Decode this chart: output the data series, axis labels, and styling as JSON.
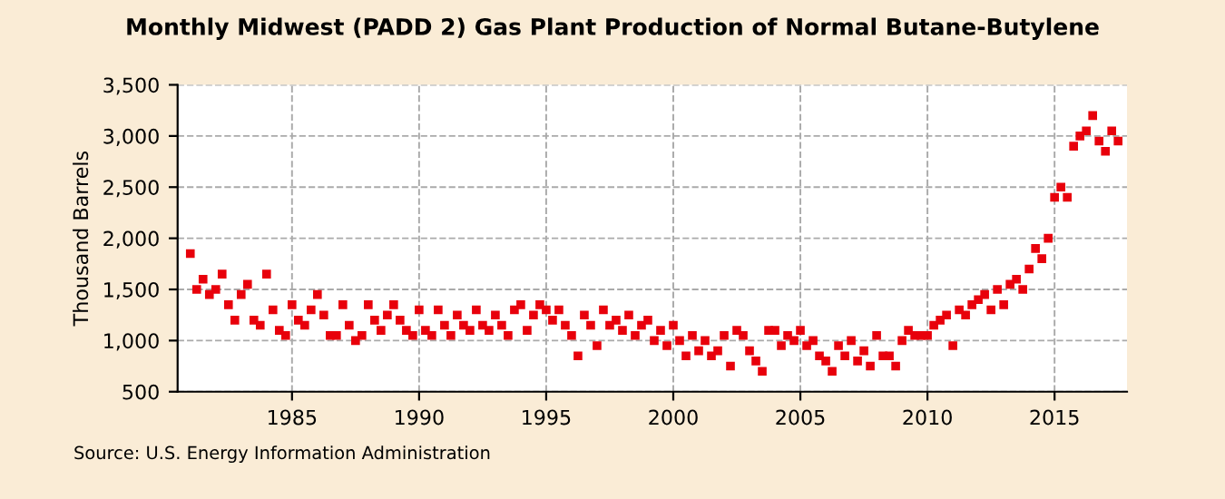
{
  "chart_data": {
    "type": "scatter",
    "title": "Monthly Midwest (PADD 2) Gas Plant Production of Normal Butane-Butylene",
    "ylabel": "Thousand Barrels",
    "annotations": [
      "Source: U.S. Energy Information Administration"
    ],
    "xlim": [
      1980.5,
      2017.85
    ],
    "xticks": [
      1985,
      1990,
      1995,
      2000,
      2005,
      2010,
      2015
    ],
    "ylim": [
      500,
      3500
    ],
    "yticks": [
      {
        "value": 500,
        "label": "500"
      },
      {
        "value": 1000,
        "label": "1,000"
      },
      {
        "value": 1500,
        "label": "1,500"
      },
      {
        "value": 2000,
        "label": "2,000"
      },
      {
        "value": 2500,
        "label": "2,500"
      },
      {
        "value": 3000,
        "label": "3,000"
      },
      {
        "value": 3500,
        "label": "3,500"
      }
    ],
    "grid": true,
    "marker": "square",
    "series": [
      {
        "color": "#e8000b",
        "x": [
          1981.0,
          1981.25,
          1981.5,
          1981.75,
          1982.0,
          1982.25,
          1982.5,
          1982.75,
          1983.0,
          1983.25,
          1983.5,
          1983.75,
          1984.0,
          1984.25,
          1984.5,
          1984.75,
          1985.0,
          1985.25,
          1985.5,
          1985.75,
          1986.0,
          1986.25,
          1986.5,
          1986.75,
          1987.0,
          1987.25,
          1987.5,
          1987.75,
          1988.0,
          1988.25,
          1988.5,
          1988.75,
          1989.0,
          1989.25,
          1989.5,
          1989.75,
          1990.0,
          1990.25,
          1990.5,
          1990.75,
          1991.0,
          1991.25,
          1991.5,
          1991.75,
          1992.0,
          1992.25,
          1992.5,
          1992.75,
          1993.0,
          1993.25,
          1993.5,
          1993.75,
          1994.0,
          1994.25,
          1994.5,
          1994.75,
          1995.0,
          1995.25,
          1995.5,
          1995.75,
          1996.0,
          1996.25,
          1996.5,
          1996.75,
          1997.0,
          1997.25,
          1997.5,
          1997.75,
          1998.0,
          1998.25,
          1998.5,
          1998.75,
          1999.0,
          1999.25,
          1999.5,
          1999.75,
          2000.0,
          2000.25,
          2000.5,
          2000.75,
          2001.0,
          2001.25,
          2001.5,
          2001.75,
          2002.0,
          2002.25,
          2002.5,
          2002.75,
          2003.0,
          2003.25,
          2003.5,
          2003.75,
          2004.0,
          2004.25,
          2004.5,
          2004.75,
          2005.0,
          2005.25,
          2005.5,
          2005.75,
          2006.0,
          2006.25,
          2006.5,
          2006.75,
          2007.0,
          2007.25,
          2007.5,
          2007.75,
          2008.0,
          2008.25,
          2008.5,
          2008.75,
          2009.0,
          2009.25,
          2009.5,
          2009.75,
          2010.0,
          2010.25,
          2010.5,
          2010.75,
          2011.0,
          2011.25,
          2011.5,
          2011.75,
          2012.0,
          2012.25,
          2012.5,
          2012.75,
          2013.0,
          2013.25,
          2013.5,
          2013.75,
          2014.0,
          2014.25,
          2014.5,
          2014.75,
          2015.0,
          2015.25,
          2015.5,
          2015.75,
          2016.0,
          2016.25,
          2016.5,
          2016.75,
          2017.0,
          2017.25,
          2017.5
        ],
        "values": [
          1850,
          1500,
          1600,
          1450,
          1500,
          1650,
          1350,
          1200,
          1450,
          1550,
          1200,
          1150,
          1650,
          1300,
          1100,
          1050,
          1350,
          1200,
          1150,
          1300,
          1450,
          1250,
          1050,
          1050,
          1350,
          1150,
          1000,
          1050,
          1350,
          1200,
          1100,
          1250,
          1350,
          1200,
          1100,
          1050,
          1300,
          1100,
          1050,
          1300,
          1150,
          1050,
          1250,
          1150,
          1100,
          1300,
          1150,
          1100,
          1250,
          1150,
          1050,
          1300,
          1350,
          1100,
          1250,
          1350,
          1300,
          1200,
          1300,
          1150,
          1050,
          850,
          1250,
          1150,
          950,
          1300,
          1150,
          1200,
          1100,
          1250,
          1050,
          1150,
          1200,
          1000,
          1100,
          950,
          1150,
          1000,
          850,
          1050,
          900,
          1000,
          850,
          900,
          1050,
          750,
          1100,
          1050,
          900,
          800,
          700,
          1100,
          1100,
          950,
          1050,
          1000,
          1100,
          950,
          1000,
          850,
          800,
          700,
          950,
          850,
          1000,
          800,
          900,
          750,
          1050,
          850,
          850,
          750,
          1000,
          1100,
          1050,
          1050,
          1050,
          1150,
          1200,
          1250,
          950,
          1300,
          1250,
          1350,
          1400,
          1450,
          1300,
          1500,
          1350,
          1550,
          1600,
          1500,
          1700,
          1900,
          1800,
          2000,
          2400,
          2500,
          2400,
          2900,
          3000,
          3050,
          3200,
          2950,
          2850,
          3050,
          2950
        ]
      }
    ]
  }
}
